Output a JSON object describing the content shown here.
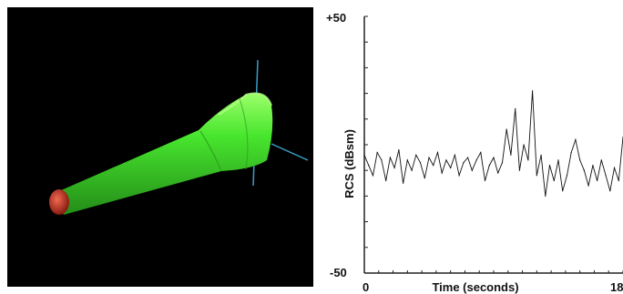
{
  "scene": {
    "background_color": "#000000",
    "body_color": "#3fe22a",
    "nose_color": "#d23a2a",
    "axis_color": "#3aa0c8"
  },
  "chart_data": {
    "type": "line",
    "title": "",
    "xlabel": "Time (seconds)",
    "ylabel": "RCS (dBsm)",
    "xlim": [
      0,
      18
    ],
    "ylim": [
      -50,
      50
    ],
    "x_tick_labels": [
      "0",
      "18"
    ],
    "y_tick_labels": [
      "+50",
      "-50"
    ],
    "grid": false,
    "line_color": "#111111",
    "series": [
      {
        "x": [
          0.0,
          0.3,
          0.6,
          0.9,
          1.2,
          1.5,
          1.8,
          2.1,
          2.4,
          2.7,
          3.0,
          3.3,
          3.6,
          3.9,
          4.2,
          4.5,
          4.8,
          5.1,
          5.4,
          5.7,
          6.0,
          6.3,
          6.6,
          6.9,
          7.2,
          7.5,
          7.8,
          8.1,
          8.4,
          8.7,
          9.0,
          9.3,
          9.6,
          9.9,
          10.2,
          10.5,
          10.8,
          11.1,
          11.4,
          11.7,
          12.0,
          12.3,
          12.6,
          12.9,
          13.2,
          13.5,
          13.8,
          14.1,
          14.4,
          14.7,
          15.0,
          15.3,
          15.6,
          15.9,
          16.2,
          16.5,
          16.8,
          17.1,
          17.4,
          17.7,
          18.0
        ],
        "values": [
          -4,
          -8,
          -12,
          -3,
          -6,
          -14,
          -5,
          -9,
          -2,
          -15,
          -6,
          -10,
          -4,
          -7,
          -13,
          -5,
          -8,
          -3,
          -11,
          -6,
          -9,
          -4,
          -12,
          -7,
          -5,
          -10,
          -6,
          -3,
          -14,
          -8,
          -5,
          -11,
          -7,
          6,
          -4,
          14,
          -10,
          0,
          -6,
          21,
          -12,
          -4,
          -20,
          -8,
          -14,
          -6,
          -18,
          -12,
          -3,
          2,
          -6,
          -10,
          -16,
          -8,
          -14,
          -6,
          -12,
          -18,
          -9,
          -14,
          3
        ]
      }
    ]
  }
}
